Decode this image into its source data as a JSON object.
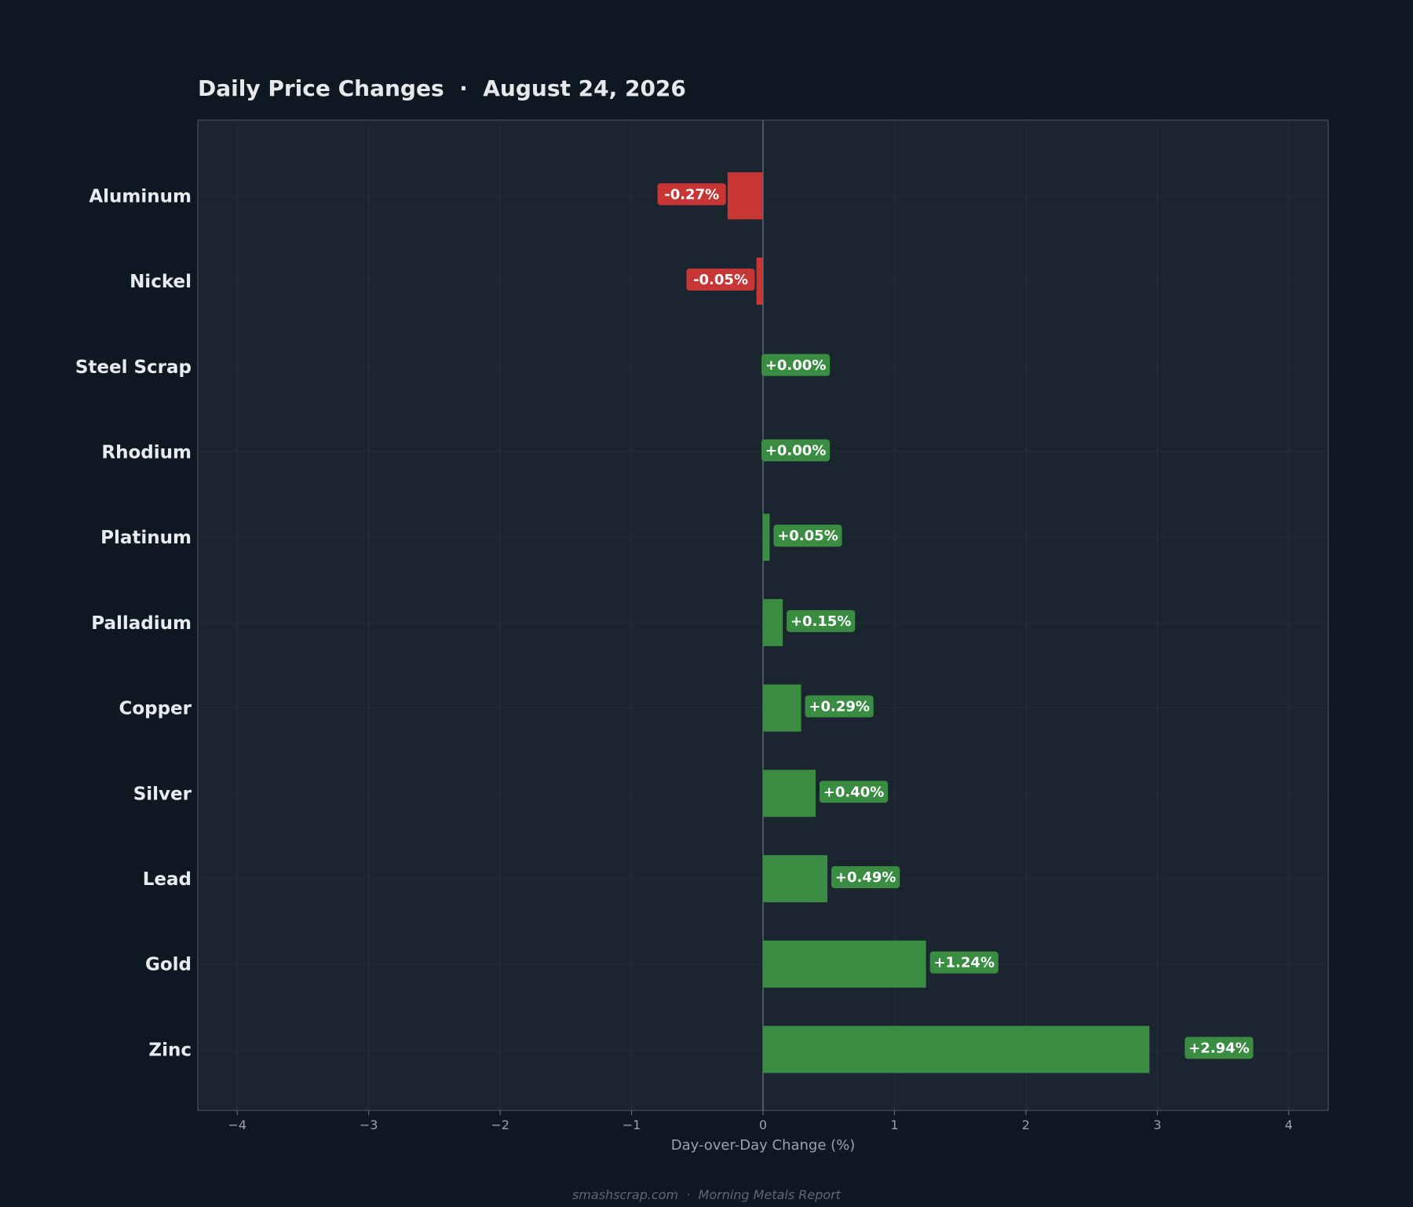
{
  "chart_data": {
    "type": "bar",
    "orientation": "horizontal",
    "title": "Daily Price Changes  ·  August 24, 2026",
    "xlabel": "Day-over-Day Change (%)",
    "ylabel": "",
    "xlim": [
      -4.3,
      4.3
    ],
    "xticks": [
      -4,
      -3,
      -2,
      -1,
      0,
      1,
      2,
      3,
      4
    ],
    "xtick_labels": [
      "−4",
      "−3",
      "−2",
      "−1",
      "0",
      "1",
      "2",
      "3",
      "4"
    ],
    "categories": [
      "Aluminum",
      "Nickel",
      "Steel Scrap",
      "Rhodium",
      "Platinum",
      "Palladium",
      "Copper",
      "Silver",
      "Lead",
      "Gold",
      "Zinc"
    ],
    "values": [
      -0.27,
      -0.05,
      0.0,
      0.0,
      0.05,
      0.15,
      0.29,
      0.4,
      0.49,
      1.24,
      2.94
    ],
    "value_labels": [
      "-0.27%",
      "-0.05%",
      "+0.00%",
      "+0.00%",
      "+0.05%",
      "+0.15%",
      "+0.29%",
      "+0.40%",
      "+0.49%",
      "+1.24%",
      "+2.94%"
    ],
    "grid": true,
    "legend": "none",
    "colors": {
      "positive": "#3a8c43",
      "negative": "#c73535",
      "background": "#0e1822",
      "plot_background": "#1b2530",
      "zero_line": "#5a6673"
    }
  },
  "footer": "smashscrap.com  ·  Morning Metals Report"
}
